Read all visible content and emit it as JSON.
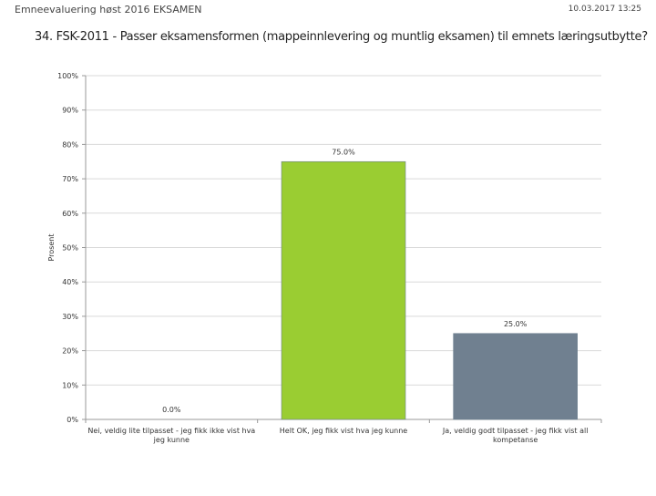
{
  "header": {
    "survey_title": "Emneevaluering høst 2016 EKSAMEN",
    "datetime": "10.03.2017 13:25"
  },
  "question": {
    "text": "34. FSK-2011 - Passer eksamensformen (mappeinnlevering og muntlig eksamen) til emnets læringsutbytte?"
  },
  "chart_data": {
    "type": "bar",
    "title": "34. FSK-2011 - Passer eksamensformen (mappeinnlevering og muntlig eksamen) til emnets læringsutbytte?",
    "xlabel": "",
    "ylabel": "Prosent",
    "ylim": [
      0,
      100
    ],
    "yticks": [
      "0%",
      "10%",
      "20%",
      "30%",
      "40%",
      "50%",
      "60%",
      "70%",
      "80%",
      "90%",
      "100%"
    ],
    "grid": true,
    "categories": [
      [
        "Nei, veldig lite tilpasset - jeg fikk ikke vist hva",
        "jeg kunne"
      ],
      [
        "Helt OK, jeg fikk vist hva jeg kunne"
      ],
      [
        "Ja, veldig godt tilpasset - jeg fikk vist all",
        "kompetanse"
      ]
    ],
    "values": [
      0.0,
      75.0,
      25.0
    ],
    "value_labels": [
      "0.0%",
      "75.0%",
      "25.0%"
    ],
    "colors": [
      "#a6a6a6",
      "#9acd32",
      "#708090"
    ]
  }
}
